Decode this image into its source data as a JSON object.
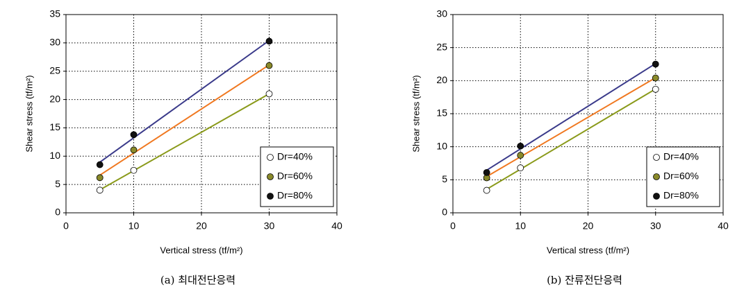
{
  "chart_data": [
    {
      "type": "scatter",
      "caption": "(a) 최대전단응력",
      "x_label": "Vertical stress (tf/m²)",
      "y_label": "Shear stress (tf/m²)",
      "x": [
        5,
        10,
        30
      ],
      "xlim": [
        0,
        40
      ],
      "xticks": [
        0,
        10,
        20,
        30,
        40
      ],
      "ylim": [
        0,
        35
      ],
      "yticks": [
        0,
        5,
        10,
        15,
        20,
        25,
        30,
        35
      ],
      "grid": true,
      "legend": "lower right",
      "trendline": true,
      "series": [
        {
          "name": "Dr=40%",
          "color": "#ffffff",
          "line_color": "#8a9a1a",
          "values": [
            4.0,
            7.5,
            21.0
          ]
        },
        {
          "name": "Dr=60%",
          "color": "#8a8a2a",
          "line_color": "#f07820",
          "values": [
            6.2,
            11.1,
            26.0
          ]
        },
        {
          "name": "Dr=80%",
          "color": "#111111",
          "line_color": "#3a3a8a",
          "values": [
            8.5,
            13.8,
            30.3
          ]
        }
      ]
    },
    {
      "type": "scatter",
      "caption": "(b) 잔류전단응력",
      "x_label": "Vertical stress (tf/m²)",
      "y_label": "Shear stress (tf/m²)",
      "x": [
        5,
        10,
        30
      ],
      "xlim": [
        0,
        40
      ],
      "xticks": [
        0,
        10,
        20,
        30,
        40
      ],
      "ylim": [
        0,
        30
      ],
      "yticks": [
        0,
        5,
        10,
        15,
        20,
        25,
        30
      ],
      "grid": true,
      "legend": "lower right",
      "trendline": true,
      "series": [
        {
          "name": "Dr=40%",
          "color": "#ffffff",
          "line_color": "#8a9a1a",
          "values": [
            3.4,
            6.8,
            18.7
          ]
        },
        {
          "name": "Dr=60%",
          "color": "#8a8a2a",
          "line_color": "#f07820",
          "values": [
            5.3,
            8.7,
            20.4
          ]
        },
        {
          "name": "Dr=80%",
          "color": "#111111",
          "line_color": "#3a3a8a",
          "values": [
            6.1,
            10.1,
            22.5
          ]
        }
      ]
    }
  ]
}
